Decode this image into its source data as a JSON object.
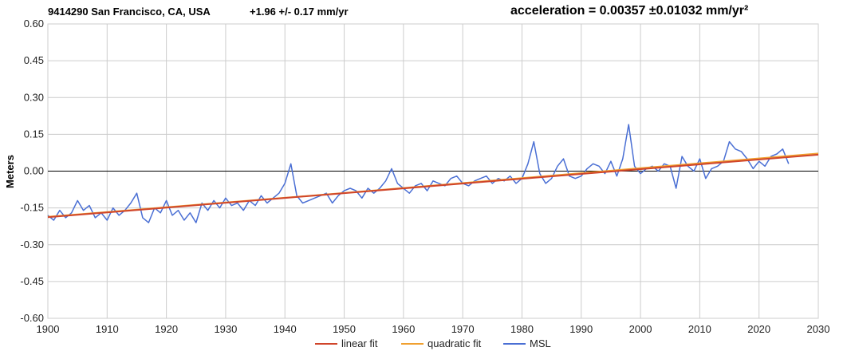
{
  "header": {
    "station_title": "9414290 San Francisco, CA, USA",
    "trend": "+1.96 +/- 0.17 mm/yr",
    "acceleration": "acceleration = 0.00357 ±0.01032 mm/yr²"
  },
  "colors": {
    "msl": "#4a6fd4",
    "linear_fit": "#d0452a",
    "quadratic_fit": "#f0a030",
    "zero_line": "#000000",
    "grid": "#cccccc"
  },
  "chart_data": {
    "type": "line",
    "title": "9414290 San Francisco, CA, USA",
    "ylabel": "Meters",
    "xlabel": "",
    "xlim": [
      1900,
      2030
    ],
    "ylim": [
      -0.6,
      0.6
    ],
    "x_ticks": [
      1900,
      1910,
      1920,
      1930,
      1940,
      1950,
      1960,
      1970,
      1980,
      1990,
      2000,
      2010,
      2020,
      2030
    ],
    "y_ticks": [
      "0.60",
      "0.45",
      "0.30",
      "0.15",
      "0.00",
      "-0.15",
      "-0.30",
      "-0.45",
      "-0.60"
    ],
    "grid": true,
    "legend_position": "bottom",
    "series": [
      {
        "name": "linear fit",
        "x": [
          1900,
          2030
        ],
        "y": [
          -0.188,
          0.067
        ]
      },
      {
        "name": "quadratic fit",
        "x": [
          1900,
          1950,
          2000,
          2030
        ],
        "y": [
          -0.186,
          -0.089,
          0.012,
          0.072
        ]
      },
      {
        "name": "MSL",
        "x": [
          1900,
          1901,
          1902,
          1903,
          1904,
          1905,
          1906,
          1907,
          1908,
          1909,
          1910,
          1911,
          1912,
          1913,
          1914,
          1915,
          1916,
          1917,
          1918,
          1919,
          1920,
          1921,
          1922,
          1923,
          1924,
          1925,
          1926,
          1927,
          1928,
          1929,
          1930,
          1931,
          1932,
          1933,
          1934,
          1935,
          1936,
          1937,
          1938,
          1939,
          1940,
          1941,
          1942,
          1943,
          1944,
          1945,
          1946,
          1947,
          1948,
          1949,
          1950,
          1951,
          1952,
          1953,
          1954,
          1955,
          1956,
          1957,
          1958,
          1959,
          1960,
          1961,
          1962,
          1963,
          1964,
          1965,
          1966,
          1967,
          1968,
          1969,
          1970,
          1971,
          1972,
          1973,
          1974,
          1975,
          1976,
          1977,
          1978,
          1979,
          1980,
          1981,
          1982,
          1983,
          1984,
          1985,
          1986,
          1987,
          1988,
          1989,
          1990,
          1991,
          1992,
          1993,
          1994,
          1995,
          1996,
          1997,
          1998,
          1999,
          2000,
          2001,
          2002,
          2003,
          2004,
          2005,
          2006,
          2007,
          2008,
          2009,
          2010,
          2011,
          2012,
          2013,
          2014,
          2015,
          2016,
          2017,
          2018,
          2019,
          2020,
          2021,
          2022,
          2023,
          2024,
          2025
        ],
        "y": [
          -0.18,
          -0.2,
          -0.16,
          -0.19,
          -0.17,
          -0.12,
          -0.16,
          -0.14,
          -0.19,
          -0.17,
          -0.2,
          -0.15,
          -0.18,
          -0.16,
          -0.13,
          -0.09,
          -0.19,
          -0.21,
          -0.15,
          -0.17,
          -0.12,
          -0.18,
          -0.16,
          -0.2,
          -0.17,
          -0.21,
          -0.13,
          -0.16,
          -0.12,
          -0.15,
          -0.11,
          -0.14,
          -0.13,
          -0.16,
          -0.12,
          -0.14,
          -0.1,
          -0.13,
          -0.11,
          -0.09,
          -0.05,
          0.03,
          -0.1,
          -0.13,
          -0.12,
          -0.11,
          -0.1,
          -0.09,
          -0.13,
          -0.1,
          -0.08,
          -0.07,
          -0.08,
          -0.11,
          -0.07,
          -0.09,
          -0.07,
          -0.04,
          0.01,
          -0.05,
          -0.07,
          -0.09,
          -0.06,
          -0.05,
          -0.08,
          -0.04,
          -0.05,
          -0.06,
          -0.03,
          -0.02,
          -0.05,
          -0.06,
          -0.04,
          -0.03,
          -0.02,
          -0.05,
          -0.03,
          -0.04,
          -0.02,
          -0.05,
          -0.03,
          0.03,
          0.12,
          -0.01,
          -0.05,
          -0.03,
          0.02,
          0.05,
          -0.02,
          -0.03,
          -0.02,
          0.01,
          0.03,
          0.02,
          -0.01,
          0.04,
          -0.02,
          0.05,
          0.19,
          0.02,
          -0.01,
          0.01,
          0.02,
          0.0,
          0.03,
          0.02,
          -0.07,
          0.06,
          0.02,
          0.0,
          0.05,
          -0.03,
          0.01,
          0.02,
          0.04,
          0.12,
          0.09,
          0.08,
          0.05,
          0.01,
          0.04,
          0.02,
          0.06,
          0.07,
          0.09,
          0.03
        ]
      }
    ]
  }
}
